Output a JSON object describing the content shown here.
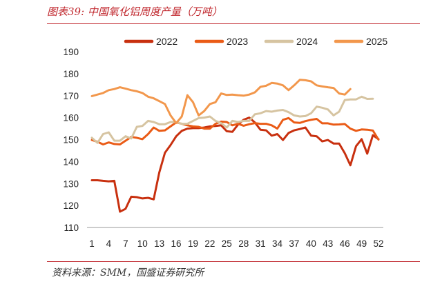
{
  "header": {
    "title": "图表39:  中国氧化铝周度产量（万吨）"
  },
  "footer": {
    "source": "资料来源：SMM，国盛证券研究所"
  },
  "chart_data": {
    "type": "line",
    "title": "",
    "xlabel": "",
    "ylabel": "",
    "ylim": [
      110,
      190
    ],
    "yticks": [
      110,
      120,
      130,
      140,
      150,
      160,
      170,
      180,
      190
    ],
    "xticks": [
      1,
      4,
      7,
      10,
      13,
      16,
      19,
      22,
      25,
      28,
      31,
      34,
      37,
      40,
      43,
      46,
      49,
      52
    ],
    "xlim": [
      1,
      52
    ],
    "grid": false,
    "legend_position": "top",
    "series": [
      {
        "name": "2022",
        "color": "#c8300f",
        "width": 3,
        "x": [
          1,
          2,
          3,
          4,
          5,
          6,
          7,
          8,
          9,
          10,
          11,
          12,
          13,
          14,
          15,
          16,
          17,
          18,
          19,
          20,
          21,
          22,
          23,
          24,
          25,
          26,
          27,
          28,
          29,
          30,
          31,
          32,
          33,
          34,
          35,
          36,
          37,
          38,
          39,
          40,
          41,
          42,
          43,
          44,
          45,
          46,
          47,
          48,
          49,
          50,
          51,
          52
        ],
        "values": [
          131.5,
          131.5,
          131.2,
          131,
          131.2,
          117.2,
          118.5,
          124,
          123.8,
          123.2,
          123.5,
          122.8,
          135,
          144,
          147.5,
          151.5,
          154,
          155,
          155.2,
          155.2,
          155.5,
          156,
          156.2,
          156.5,
          153.8,
          153.5,
          156.8,
          159,
          160,
          157.8,
          154.5,
          154.2,
          151.8,
          152.5,
          149.8,
          153,
          154.2,
          154.8,
          155.5,
          151.8,
          151.5,
          149.2,
          149.8,
          148.2,
          148.2,
          143.8,
          138.3,
          147,
          150.2,
          143.6,
          152,
          150.2
        ]
      },
      {
        "name": "2023",
        "color": "#ea5b16",
        "width": 3,
        "x": [
          1,
          2,
          3,
          4,
          5,
          6,
          7,
          8,
          9,
          10,
          11,
          12,
          13,
          14,
          15,
          16,
          17,
          18,
          19,
          20,
          21,
          22,
          23,
          24,
          25,
          26,
          27,
          28,
          29,
          30,
          31,
          32,
          33,
          34,
          35,
          36,
          37,
          38,
          39,
          40,
          41,
          42,
          43,
          44,
          45,
          46,
          47,
          48,
          49,
          50,
          51,
          52
        ],
        "values": [
          149.8,
          149,
          147.8,
          148.7,
          148,
          147.8,
          149.5,
          151.2,
          150.8,
          150.2,
          152.5,
          155.5,
          154,
          154.2,
          156,
          157.8,
          157.2,
          156.5,
          156,
          155.8,
          155,
          155,
          157.2,
          158.2,
          158,
          156.5,
          157.2,
          156.3,
          157,
          157.5,
          157.2,
          157.2,
          156.5,
          155,
          159,
          159.8,
          157.8,
          157.6,
          158.4,
          159,
          159.4,
          157.4,
          157.4,
          156.8,
          156.9,
          157.1,
          155,
          154,
          154.6,
          154.5,
          154.1,
          150
        ]
      },
      {
        "name": "2024",
        "color": "#d6c4a1",
        "width": 3,
        "x": [
          1,
          2,
          3,
          4,
          5,
          6,
          7,
          8,
          9,
          10,
          11,
          12,
          13,
          14,
          15,
          16,
          17,
          18,
          19,
          20,
          21,
          22,
          23,
          24,
          25,
          26,
          27,
          28,
          29,
          30,
          31,
          32,
          33,
          34,
          35,
          36,
          37,
          38,
          39,
          40,
          41,
          42,
          43,
          44,
          45,
          46,
          47,
          48,
          49,
          50,
          51
        ],
        "values": [
          150.8,
          148.5,
          152.5,
          153.3,
          149.5,
          149.5,
          151.5,
          150.5,
          155.8,
          156.2,
          158.5,
          158,
          157,
          157,
          158,
          158,
          157.2,
          157.2,
          158.5,
          159.8,
          160,
          160.5,
          158.5,
          157.5,
          155.5,
          158.5,
          158,
          158.5,
          158.5,
          161.5,
          162,
          163,
          162.7,
          163.2,
          163.5,
          162.5,
          161,
          160.5,
          160.7,
          162,
          165,
          164.5,
          163.7,
          161,
          162.7,
          168,
          168.3,
          168.3,
          169.5,
          168.5,
          168.6
        ]
      },
      {
        "name": "2025",
        "color": "#f2974c",
        "width": 3,
        "x": [
          1,
          2,
          3,
          4,
          5,
          6,
          7,
          8,
          9,
          10,
          11,
          12,
          13,
          14,
          15,
          16,
          17,
          18,
          19,
          20,
          21,
          22,
          23,
          24,
          25,
          26,
          27,
          28,
          29,
          30,
          31,
          32,
          33,
          34,
          35,
          36,
          37,
          38,
          39,
          40,
          41,
          42,
          43,
          44,
          45,
          46,
          47
        ],
        "values": [
          169.8,
          170.5,
          171.2,
          172.5,
          173,
          173.8,
          173.2,
          172.5,
          172,
          171.2,
          169.5,
          168.8,
          167.5,
          166.2,
          161,
          157.5,
          160.5,
          170.2,
          167,
          161,
          163,
          166.2,
          167,
          171,
          170.3,
          170.5,
          170.2,
          170,
          170.5,
          171.5,
          174,
          174.5,
          175.8,
          175.5,
          174.7,
          172.5,
          174.7,
          177.2,
          177,
          176.5,
          174.7,
          174.2,
          173.8,
          173.5,
          171,
          170.5,
          173
        ]
      }
    ]
  }
}
